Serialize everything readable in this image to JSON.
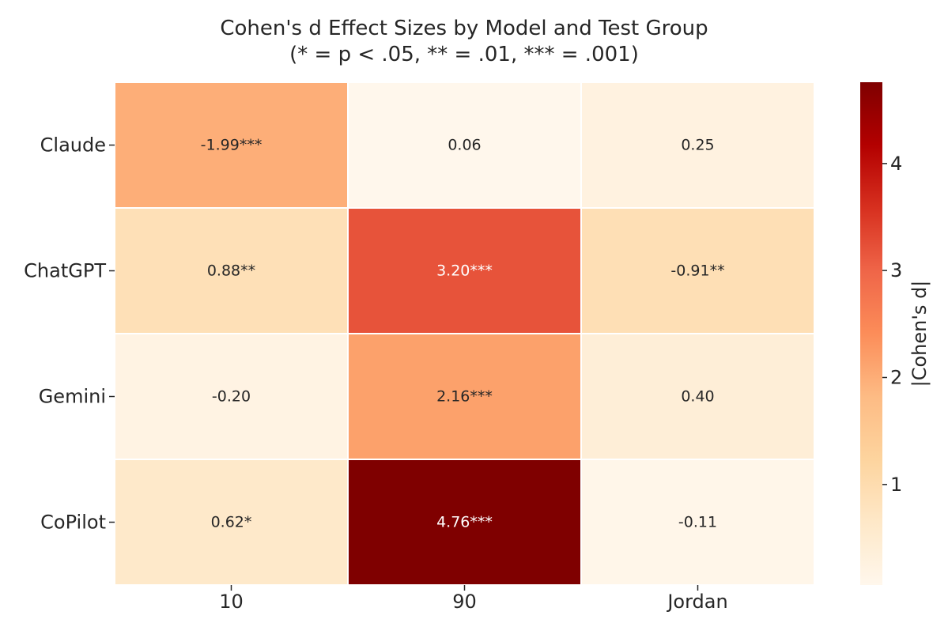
{
  "chart_data": {
    "type": "heatmap",
    "title": "Cohen's d Effect Sizes by Model and Test Group",
    "subtitle": "(* = p < .05, ** = .01, *** = .001)",
    "row_labels": [
      "Claude",
      "ChatGPT",
      "Gemini",
      "CoPilot"
    ],
    "column_labels": [
      "10",
      "90",
      "Jordan"
    ],
    "values": [
      [
        -1.99,
        0.06,
        0.25
      ],
      [
        0.88,
        3.2,
        -0.91
      ],
      [
        -0.2,
        2.16,
        0.4
      ],
      [
        0.62,
        4.76,
        -0.11
      ]
    ],
    "annotations": [
      [
        "-1.99***",
        "0.06",
        "0.25"
      ],
      [
        "0.88**",
        "3.20***",
        "-0.91**"
      ],
      [
        "-0.20",
        "2.16***",
        "0.40"
      ],
      [
        "0.62*",
        "4.76***",
        "-0.11"
      ]
    ],
    "color_metric": "absolute value",
    "colorbar": {
      "label": "|Cohen's d|",
      "ticks": [
        1,
        2,
        3,
        4
      ],
      "range": [
        0.06,
        4.76
      ],
      "colormap": "OrRd"
    },
    "colors": {
      "colormap_stops": [
        "#fff7ec",
        "#fee8c8",
        "#fdd49e",
        "#fdbb84",
        "#fc8d59",
        "#ef6548",
        "#d7301f",
        "#b30000",
        "#7f0000"
      ],
      "light_text": "#ffffff",
      "dark_text": "#262626",
      "cell_border": "#ffffff"
    }
  }
}
